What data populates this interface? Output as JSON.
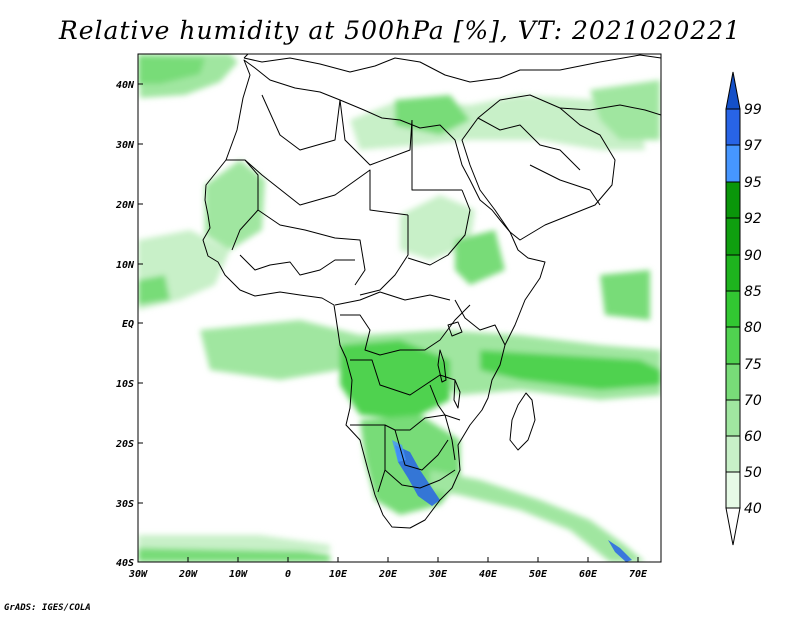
{
  "title": "Relative humidity at 500hPa [%], VT: 2021020221",
  "credit": "GrADS: IGES/COLA",
  "axes": {
    "lat_labels": [
      "40N",
      "30N",
      "20N",
      "10N",
      "EQ",
      "10S",
      "20S",
      "30S",
      "40S"
    ],
    "lon_labels": [
      "30W",
      "20W",
      "10W",
      "0",
      "10E",
      "20E",
      "30E",
      "40E",
      "50E",
      "60E",
      "70E"
    ]
  },
  "colorbar": {
    "labels": [
      "40",
      "50",
      "60",
      "70",
      "75",
      "80",
      "85",
      "90",
      "92",
      "95",
      "97",
      "99"
    ],
    "colors": [
      "#ffffff",
      "#e6fae6",
      "#c8f0c8",
      "#a0e6a0",
      "#78dc78",
      "#50d250",
      "#32c832",
      "#1eb41e",
      "#0f9f0f",
      "#0a960a",
      "#4696ff",
      "#2864e6",
      "#1450c8"
    ]
  }
}
